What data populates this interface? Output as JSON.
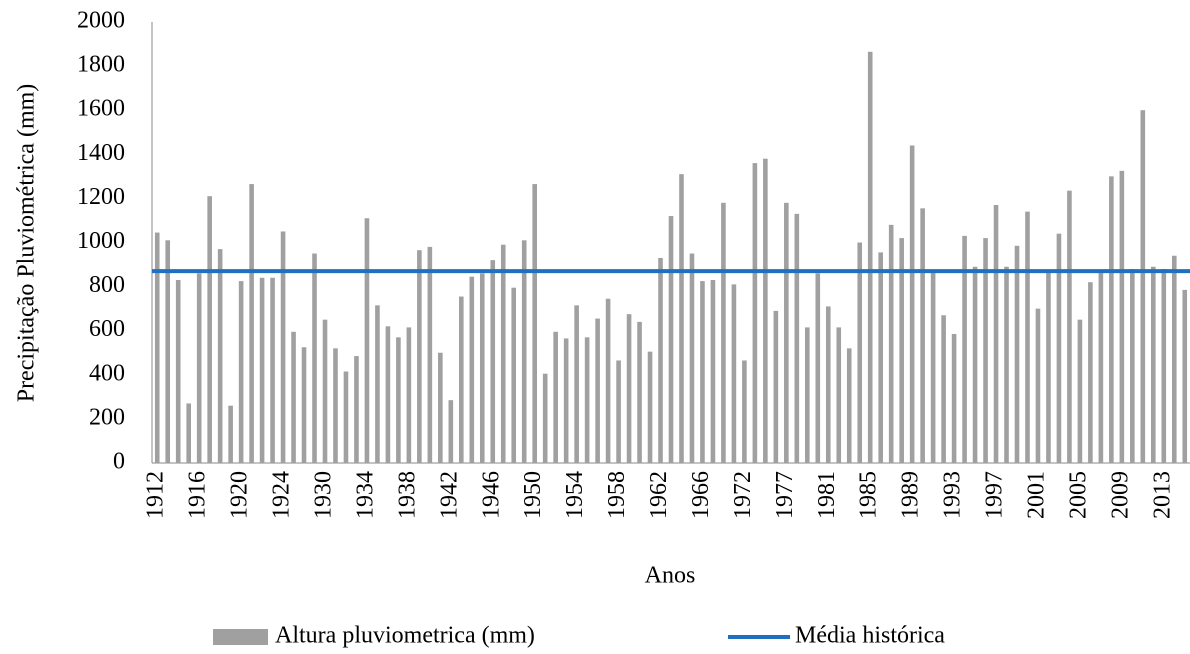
{
  "chart_data": {
    "type": "bar",
    "x_label": "Anos",
    "y_label": "Precipitação Pluviométrica (mm)",
    "categories": [
      "1912",
      null,
      null,
      null,
      "1916",
      null,
      null,
      null,
      "1920",
      null,
      null,
      null,
      "1924",
      null,
      null,
      null,
      "1930",
      null,
      null,
      null,
      "1934",
      null,
      null,
      null,
      "1938",
      null,
      null,
      null,
      "1942",
      null,
      null,
      null,
      "1946",
      null,
      null,
      null,
      "1950",
      null,
      null,
      null,
      "1954",
      null,
      null,
      null,
      "1958",
      null,
      null,
      null,
      "1962",
      null,
      null,
      null,
      "1966",
      null,
      null,
      null,
      "1972",
      null,
      null,
      null,
      "1977",
      null,
      null,
      null,
      "1981",
      null,
      null,
      null,
      "1985",
      null,
      null,
      null,
      "1989",
      null,
      null,
      null,
      "1993",
      null,
      null,
      null,
      "1997",
      null,
      null,
      null,
      "2001",
      null,
      null,
      null,
      "2005",
      null,
      null,
      null,
      "2009",
      null,
      null,
      null,
      "2013",
      null,
      null
    ],
    "series": [
      {
        "name": "Altura pluviometrica (mm)",
        "color": "#a0a0a0",
        "values": [
          1045,
          1010,
          830,
          270,
          860,
          1210,
          970,
          260,
          825,
          1265,
          840,
          840,
          1050,
          595,
          525,
          950,
          650,
          520,
          415,
          485,
          1110,
          715,
          620,
          570,
          615,
          965,
          980,
          500,
          285,
          755,
          845,
          860,
          920,
          990,
          795,
          1010,
          1265,
          405,
          595,
          565,
          715,
          570,
          655,
          745,
          465,
          675,
          640,
          505,
          930,
          1120,
          1310,
          950,
          825,
          830,
          1180,
          810,
          465,
          1360,
          1380,
          690,
          1180,
          1130,
          615,
          860,
          710,
          615,
          520,
          1000,
          1865,
          955,
          1080,
          1020,
          1440,
          1155,
          870,
          670,
          585,
          1030,
          890,
          1020,
          1170,
          890,
          985,
          1140,
          700,
          870,
          1040,
          1235,
          650,
          820,
          870,
          1300,
          1325,
          880,
          1600,
          890,
          880,
          940,
          785
        ]
      },
      {
        "name": "Média histórica",
        "color": "#1f70c1",
        "value": 870
      }
    ],
    "ylim": [
      0,
      2000
    ],
    "yticks": [
      0,
      200,
      400,
      600,
      800,
      1000,
      1200,
      1400,
      1600,
      1800,
      2000
    ]
  }
}
